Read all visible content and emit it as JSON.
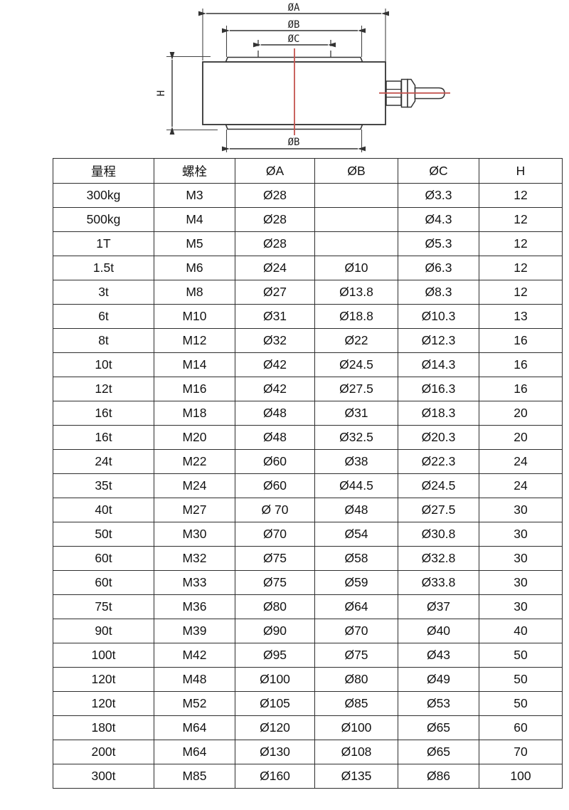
{
  "diagram": {
    "title_semantic": "load-cell-dimension-drawing",
    "labels": {
      "dia_a": "ØA",
      "dia_b_top": "ØB",
      "dia_c": "ØC",
      "height": "H",
      "dia_b_bottom": "ØB"
    },
    "colors": {
      "line_dark": "#333333",
      "centerline_red": "#c4524e"
    }
  },
  "table": {
    "headers": [
      "量程",
      "螺栓",
      "ØA",
      "ØB",
      "ØC",
      "H"
    ],
    "rows": [
      [
        "300kg",
        "M3",
        "Ø28",
        "",
        "Ø3.3",
        "12"
      ],
      [
        "500kg",
        "M4",
        "Ø28",
        "",
        "Ø4.3",
        "12"
      ],
      [
        "1T",
        "M5",
        "Ø28",
        "",
        "Ø5.3",
        "12"
      ],
      [
        "1.5t",
        "M6",
        "Ø24",
        "Ø10",
        "Ø6.3",
        "12"
      ],
      [
        "3t",
        "M8",
        "Ø27",
        "Ø13.8",
        "Ø8.3",
        "12"
      ],
      [
        "6t",
        "M10",
        "Ø31",
        "Ø18.8",
        "Ø10.3",
        "13"
      ],
      [
        "8t",
        "M12",
        "Ø32",
        "Ø22",
        "Ø12.3",
        "16"
      ],
      [
        "10t",
        "M14",
        "Ø42",
        "Ø24.5",
        "Ø14.3",
        "16"
      ],
      [
        "12t",
        "M16",
        "Ø42",
        "Ø27.5",
        "Ø16.3",
        "16"
      ],
      [
        "16t",
        "M18",
        "Ø48",
        "Ø31",
        "Ø18.3",
        "20"
      ],
      [
        "16t",
        "M20",
        "Ø48",
        "Ø32.5",
        "Ø20.3",
        "20"
      ],
      [
        "24t",
        "M22",
        "Ø60",
        "Ø38",
        "Ø22.3",
        "24"
      ],
      [
        "35t",
        "M24",
        "Ø60",
        "Ø44.5",
        "Ø24.5",
        "24"
      ],
      [
        "40t",
        "M27",
        "Ø 70",
        "Ø48",
        "Ø27.5",
        "30"
      ],
      [
        "50t",
        "M30",
        "Ø70",
        "Ø54",
        "Ø30.8",
        "30"
      ],
      [
        "60t",
        "M32",
        "Ø75",
        "Ø58",
        "Ø32.8",
        "30"
      ],
      [
        "60t",
        "M33",
        "Ø75",
        "Ø59",
        "Ø33.8",
        "30"
      ],
      [
        "75t",
        "M36",
        "Ø80",
        "Ø64",
        "Ø37",
        "30"
      ],
      [
        "90t",
        "M39",
        "Ø90",
        "Ø70",
        "Ø40",
        "40"
      ],
      [
        "100t",
        "M42",
        "Ø95",
        "Ø75",
        "Ø43",
        "50"
      ],
      [
        "120t",
        "M48",
        "Ø100",
        "Ø80",
        "Ø49",
        "50"
      ],
      [
        "120t",
        "M52",
        "Ø105",
        "Ø85",
        "Ø53",
        "50"
      ],
      [
        "180t",
        "M64",
        "Ø120",
        "Ø100",
        "Ø65",
        "60"
      ],
      [
        "200t",
        "M64",
        "Ø130",
        "Ø108",
        "Ø65",
        "70"
      ],
      [
        "300t",
        "M85",
        "Ø160",
        "Ø135",
        "Ø86",
        "100"
      ]
    ]
  }
}
